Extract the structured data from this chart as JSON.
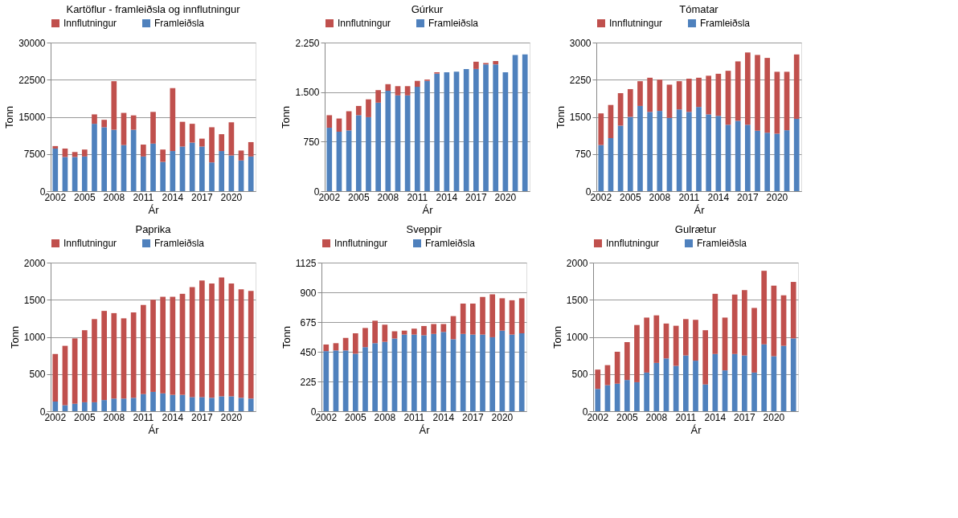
{
  "chart_data": [
    {
      "type": "bar",
      "title": "Kartöflur - framleiðsla og innflutningur",
      "xlabel": "Ár",
      "ylabel": "Tonn",
      "stacked": true,
      "legend": "top",
      "grid": "y",
      "categories": [
        "2002",
        null,
        null,
        "2005",
        null,
        null,
        "2008",
        null,
        null,
        "2011",
        null,
        null,
        "2014",
        null,
        null,
        "2017",
        null,
        null,
        "2020",
        null,
        null
      ],
      "ylim": [
        0,
        30000
      ],
      "yticks": [
        0,
        7500,
        15000,
        22500,
        30000
      ],
      "series": [
        {
          "name": "Framleiðsla",
          "color": "#4f81bd",
          "values": [
            8600,
            6900,
            6900,
            7000,
            13600,
            12900,
            12400,
            9300,
            12400,
            7000,
            9600,
            5900,
            8100,
            9000,
            9800,
            9000,
            5800,
            8100,
            7200,
            6200,
            7000
          ]
        },
        {
          "name": "Innflutningur",
          "color": "#c0504d",
          "values": [
            500,
            1700,
            1000,
            1400,
            1900,
            1500,
            9800,
            6500,
            2900,
            2400,
            6400,
            2500,
            12700,
            5000,
            3800,
            1600,
            7100,
            3400,
            6700,
            2000,
            2900
          ]
        }
      ]
    },
    {
      "type": "bar",
      "title": "Gúrkur",
      "xlabel": "Ár",
      "ylabel": "Tonn",
      "stacked": true,
      "legend": "top",
      "grid": "y",
      "categories": [
        "2002",
        null,
        null,
        "2005",
        null,
        null,
        "2008",
        null,
        null,
        "2011",
        null,
        null,
        "2014",
        null,
        null,
        "2017",
        null,
        null,
        "2020",
        null,
        null
      ],
      "ylim": [
        0,
        2250
      ],
      "yticks": [
        0,
        {
          "value": 750,
          "label": "750"
        },
        {
          "value": 1500,
          "label": "1.500"
        },
        {
          "value": 2250,
          "label": "2.250"
        }
      ],
      "series": [
        {
          "name": "Framleiðsla",
          "color": "#4f81bd",
          "values": [
            960,
            900,
            920,
            1150,
            1120,
            1340,
            1520,
            1450,
            1450,
            1580,
            1670,
            1780,
            1800,
            1810,
            1850,
            1850,
            1920,
            1920,
            1800,
            2060,
            2070
          ]
        },
        {
          "name": "Innflutningur",
          "color": "#c0504d",
          "values": [
            190,
            200,
            290,
            140,
            270,
            190,
            100,
            140,
            140,
            90,
            20,
            20,
            0,
            0,
            0,
            110,
            20,
            50,
            0,
            0,
            0
          ]
        }
      ]
    },
    {
      "type": "bar",
      "title": "Tómatar",
      "xlabel": "Ár",
      "ylabel": "Tonn",
      "stacked": true,
      "legend": "top",
      "grid": "y",
      "categories": [
        "2002",
        null,
        null,
        "2005",
        null,
        null,
        "2008",
        null,
        null,
        "2011",
        null,
        null,
        "2014",
        null,
        null,
        "2017",
        null,
        null,
        "2020",
        null,
        null
      ],
      "ylim": [
        0,
        3000
      ],
      "yticks": [
        0,
        750,
        1500,
        2250,
        3000
      ],
      "series": [
        {
          "name": "Framleiðsla",
          "color": "#4f81bd",
          "values": [
            930,
            1070,
            1320,
            1500,
            1720,
            1600,
            1620,
            1480,
            1650,
            1600,
            1700,
            1550,
            1520,
            1340,
            1420,
            1340,
            1220,
            1180,
            1160,
            1230,
            1460
          ]
        },
        {
          "name": "Innflutningur",
          "color": "#c0504d",
          "values": [
            640,
            670,
            660,
            560,
            500,
            690,
            630,
            670,
            570,
            670,
            590,
            780,
            850,
            1090,
            1200,
            1460,
            1530,
            1510,
            1250,
            1180,
            1300
          ]
        }
      ]
    },
    {
      "type": "bar",
      "title": "Paprika",
      "xlabel": "Ár",
      "ylabel": "Tonn",
      "stacked": true,
      "legend": "top",
      "grid": "y",
      "categories": [
        "2002",
        null,
        null,
        "2005",
        null,
        null,
        "2008",
        null,
        null,
        "2011",
        null,
        null,
        "2014",
        null,
        null,
        "2017",
        null,
        null,
        "2020",
        null,
        null
      ],
      "ylim": [
        0,
        2000
      ],
      "yticks": [
        0,
        500,
        1000,
        1500,
        2000
      ],
      "series": [
        {
          "name": "Framleiðsla",
          "color": "#4f81bd",
          "values": [
            130,
            80,
            100,
            120,
            120,
            150,
            170,
            170,
            180,
            230,
            260,
            240,
            220,
            220,
            190,
            190,
            180,
            200,
            200,
            180,
            170
          ]
        },
        {
          "name": "Innflutningur",
          "color": "#c0504d",
          "values": [
            640,
            800,
            880,
            970,
            1120,
            1200,
            1150,
            1080,
            1150,
            1200,
            1240,
            1300,
            1320,
            1360,
            1480,
            1570,
            1540,
            1600,
            1520,
            1460,
            1450
          ]
        }
      ]
    },
    {
      "type": "bar",
      "title": "Sveppir",
      "xlabel": "Ár",
      "ylabel": "Tonn",
      "stacked": true,
      "legend": "top",
      "grid": "y",
      "categories": [
        "2002",
        null,
        null,
        "2005",
        null,
        null,
        "2008",
        null,
        null,
        "2011",
        null,
        null,
        "2014",
        null,
        null,
        "2017",
        null,
        null,
        "2020",
        null,
        null
      ],
      "ylim": [
        0,
        1125
      ],
      "yticks": [
        0,
        225,
        450,
        675,
        900,
        1125
      ],
      "series": [
        {
          "name": "Framleiðsla",
          "color": "#4f81bd",
          "values": [
            455,
            460,
            460,
            435,
            485,
            515,
            525,
            550,
            580,
            580,
            575,
            585,
            600,
            545,
            585,
            580,
            580,
            560,
            610,
            580,
            590
          ]
        },
        {
          "name": "Innflutningur",
          "color": "#c0504d",
          "values": [
            50,
            55,
            95,
            155,
            145,
            170,
            130,
            55,
            30,
            45,
            70,
            75,
            60,
            175,
            230,
            235,
            285,
            325,
            245,
            260,
            265
          ]
        }
      ]
    },
    {
      "type": "bar",
      "title": "Gulrætur",
      "xlabel": "Ár",
      "ylabel": "Tonn",
      "stacked": true,
      "legend": "top",
      "grid": "y",
      "categories": [
        "2002",
        null,
        null,
        "2005",
        null,
        null,
        "2008",
        null,
        null,
        "2011",
        null,
        null,
        "2014",
        null,
        null,
        "2017",
        null,
        null,
        "2020",
        null,
        null
      ],
      "ylim": [
        0,
        2000
      ],
      "yticks": [
        0,
        500,
        1000,
        1500,
        2000
      ],
      "series": [
        {
          "name": "Framleiðsla",
          "color": "#4f81bd",
          "values": [
            300,
            350,
            370,
            420,
            390,
            520,
            650,
            710,
            610,
            750,
            680,
            360,
            770,
            550,
            770,
            750,
            520,
            900,
            740,
            880,
            980
          ]
        },
        {
          "name": "Innflutningur",
          "color": "#c0504d",
          "values": [
            260,
            270,
            430,
            510,
            770,
            740,
            640,
            470,
            540,
            490,
            550,
            730,
            810,
            710,
            800,
            880,
            870,
            990,
            950,
            680,
            760
          ]
        }
      ]
    }
  ]
}
